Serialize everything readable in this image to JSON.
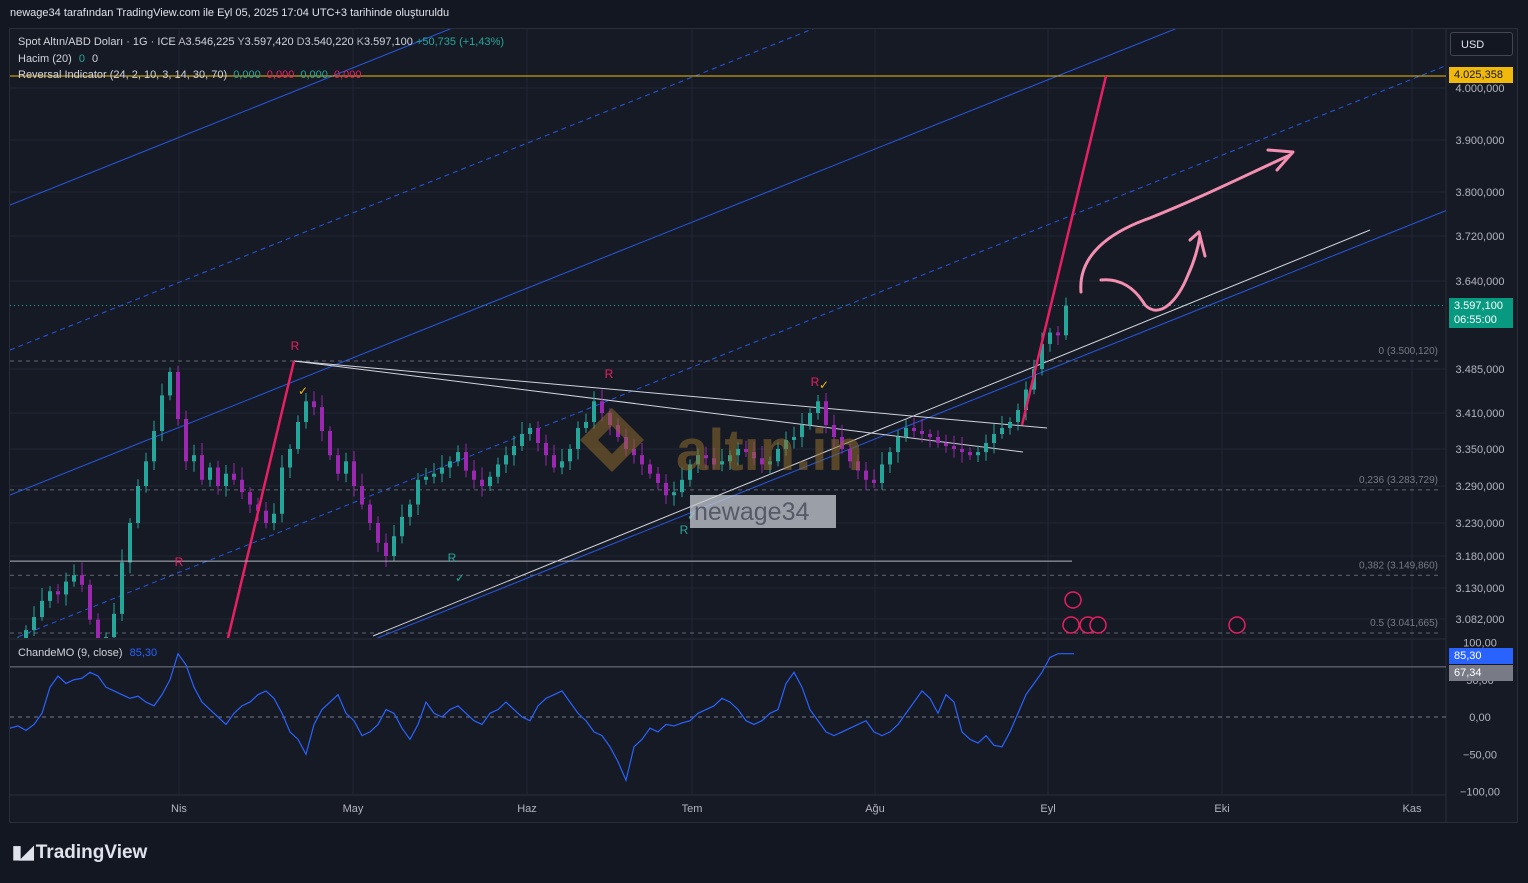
{
  "header": {
    "caption": "newage34 tarafından TradingView.com ile Eyl 05, 2025 17:04 UTC+3 tarihinde oluşturuldu"
  },
  "currency_button": "USD",
  "legend": {
    "symbol": "Spot Altın/ABD Doları · 1G · ICE",
    "open_label": "A",
    "open": "3.546,225",
    "high_label": "Y",
    "high": "3.597,420",
    "low_label": "D",
    "low": "3.540,220",
    "close_label": "K",
    "close": "3.597,100",
    "change": "+50,735 (+1,43%)",
    "volume_label": "Hacim (20)",
    "volume_v1": "0",
    "volume_v2": "0",
    "reversal_label": "Reversal Indicator (24, 2, 10, 3, 14, 30, 70)",
    "reversal_values": [
      "0,000",
      "0,000",
      "0,000",
      "0,000"
    ]
  },
  "oscillator_legend": {
    "label": "ChandeMO (9, close)",
    "value": "85,30"
  },
  "price_labels": {
    "resistance": "4.025,358",
    "last_price": "3.597,100",
    "countdown": "06:55:00",
    "osc_value": "85,30",
    "osc_level": "67,34"
  },
  "fib_labels": [
    {
      "text": "0 (3.500,120)",
      "price": 3500.12
    },
    {
      "text": "0,236 (3.283,729)",
      "price": 3283.729
    },
    {
      "text": "0,382 (3.149,860)",
      "price": 3149.86
    },
    {
      "text": "0.5 (3.041,665)",
      "price": 3041.665
    }
  ],
  "signal_marks": [
    "R",
    "R",
    "R",
    "R",
    "R",
    "R",
    "✓",
    "✓",
    "✓",
    "✓"
  ],
  "watermark": {
    "brand": "altın.in",
    "user": "newage34"
  },
  "footer": {
    "brand": "TradingView"
  },
  "colors": {
    "background": "#131722",
    "pane": "#161a25",
    "grid": "#232632",
    "up_candle": "#26a69a",
    "down_candle": "#9c27b0",
    "channel": "#2962ff",
    "reversal_red": "#e91e63",
    "hline_resistance": "#f0b90b",
    "osc_line": "#2962ff",
    "annotation_pink": "#f48fb1"
  },
  "chart_data": {
    "type": "line",
    "title": "Spot Altın/ABD Doları · 1G · ICE",
    "x_ticks": [
      "Nis",
      "May",
      "Haz",
      "Tem",
      "Ağu",
      "Eyl",
      "Eki",
      "Kas"
    ],
    "y_ticks_price": [
      {
        "label": "4.000,000",
        "value": 4000
      },
      {
        "label": "3.900,000",
        "value": 3900
      },
      {
        "label": "3.800,000",
        "value": 3800
      },
      {
        "label": "3.720,000",
        "value": 3720
      },
      {
        "label": "3.640,000",
        "value": 3640
      },
      {
        "label": "3.485,000",
        "value": 3485
      },
      {
        "label": "3.410,000",
        "value": 3410
      },
      {
        "label": "3.350,000",
        "value": 3350
      },
      {
        "label": "3.290,000",
        "value": 3290
      },
      {
        "label": "3.230,000",
        "value": 3230
      },
      {
        "label": "3.180,000",
        "value": 3180
      },
      {
        "label": "3.130,000",
        "value": 3130
      },
      {
        "label": "3.082,000",
        "value": 3082
      }
    ],
    "y_ticks_osc": [
      {
        "label": "100,00",
        "value": 100
      },
      {
        "label": "50,00",
        "value": 50
      },
      {
        "label": "0,00",
        "value": 0
      },
      {
        "label": "−50,00",
        "value": -50
      },
      {
        "label": "−100,00",
        "value": -100
      }
    ],
    "price_series": {
      "name": "Spot Altın/ABD Doları",
      "x_start": "2025-03-20",
      "close": [
        2985,
        3020,
        3050,
        3085,
        3110,
        3125,
        3120,
        3140,
        3150,
        3135,
        3080,
        3020,
        3030,
        3090,
        3170,
        3230,
        3290,
        3330,
        3380,
        3440,
        3480,
        3400,
        3330,
        3340,
        3300,
        3320,
        3290,
        3310,
        3300,
        3280,
        3260,
        3250,
        3230,
        3245,
        3320,
        3350,
        3395,
        3430,
        3420,
        3380,
        3340,
        3310,
        3330,
        3290,
        3260,
        3230,
        3200,
        3180,
        3210,
        3240,
        3260,
        3300,
        3305,
        3310,
        3320,
        3330,
        3345,
        3315,
        3300,
        3290,
        3305,
        3325,
        3340,
        3355,
        3375,
        3385,
        3360,
        3340,
        3320,
        3330,
        3350,
        3385,
        3395,
        3430,
        3410,
        3390,
        3370,
        3350,
        3340,
        3325,
        3310,
        3295,
        3275,
        3280,
        3300,
        3325,
        3340,
        3335,
        3325,
        3330,
        3340,
        3350,
        3345,
        3335,
        3325,
        3330,
        3350,
        3365,
        3370,
        3390,
        3410,
        3430,
        3390,
        3370,
        3350,
        3330,
        3315,
        3300,
        3295,
        3325,
        3345,
        3370,
        3385,
        3380,
        3375,
        3370,
        3360,
        3355,
        3350,
        3345,
        3340,
        3345,
        3360,
        3375,
        3385,
        3395,
        3415,
        3450,
        3485,
        3530,
        3550,
        3545,
        3597
      ]
    },
    "oscillator_series": {
      "name": "ChandeMO (9, close)",
      "values": [
        -15,
        -12,
        -18,
        -10,
        5,
        40,
        55,
        45,
        50,
        52,
        60,
        55,
        40,
        35,
        30,
        25,
        28,
        20,
        15,
        30,
        50,
        85,
        70,
        40,
        20,
        10,
        0,
        -10,
        5,
        15,
        20,
        30,
        35,
        25,
        5,
        -20,
        -30,
        -50,
        -10,
        10,
        20,
        30,
        5,
        -5,
        -25,
        -20,
        -10,
        10,
        5,
        -15,
        -30,
        -10,
        20,
        5,
        0,
        10,
        15,
        5,
        -5,
        -10,
        5,
        10,
        20,
        10,
        0,
        -5,
        15,
        25,
        30,
        35,
        20,
        5,
        -5,
        -20,
        -25,
        -40,
        -60,
        -85,
        -40,
        -30,
        -15,
        -20,
        -10,
        -12,
        -8,
        -5,
        5,
        10,
        15,
        25,
        20,
        10,
        -5,
        -10,
        -5,
        5,
        10,
        45,
        60,
        40,
        10,
        -5,
        -20,
        -25,
        -20,
        -15,
        -10,
        -5,
        -20,
        -25,
        -20,
        -10,
        5,
        20,
        35,
        25,
        5,
        30,
        20,
        -20,
        -30,
        -35,
        -25,
        -38,
        -40,
        -20,
        5,
        30,
        45,
        60,
        80,
        85,
        85,
        85
      ]
    },
    "hlines": [
      {
        "name": "resistance",
        "value": 4025.358
      },
      {
        "name": "support",
        "value": 3172
      },
      {
        "name": "osc_level",
        "value": 67.34
      }
    ]
  }
}
